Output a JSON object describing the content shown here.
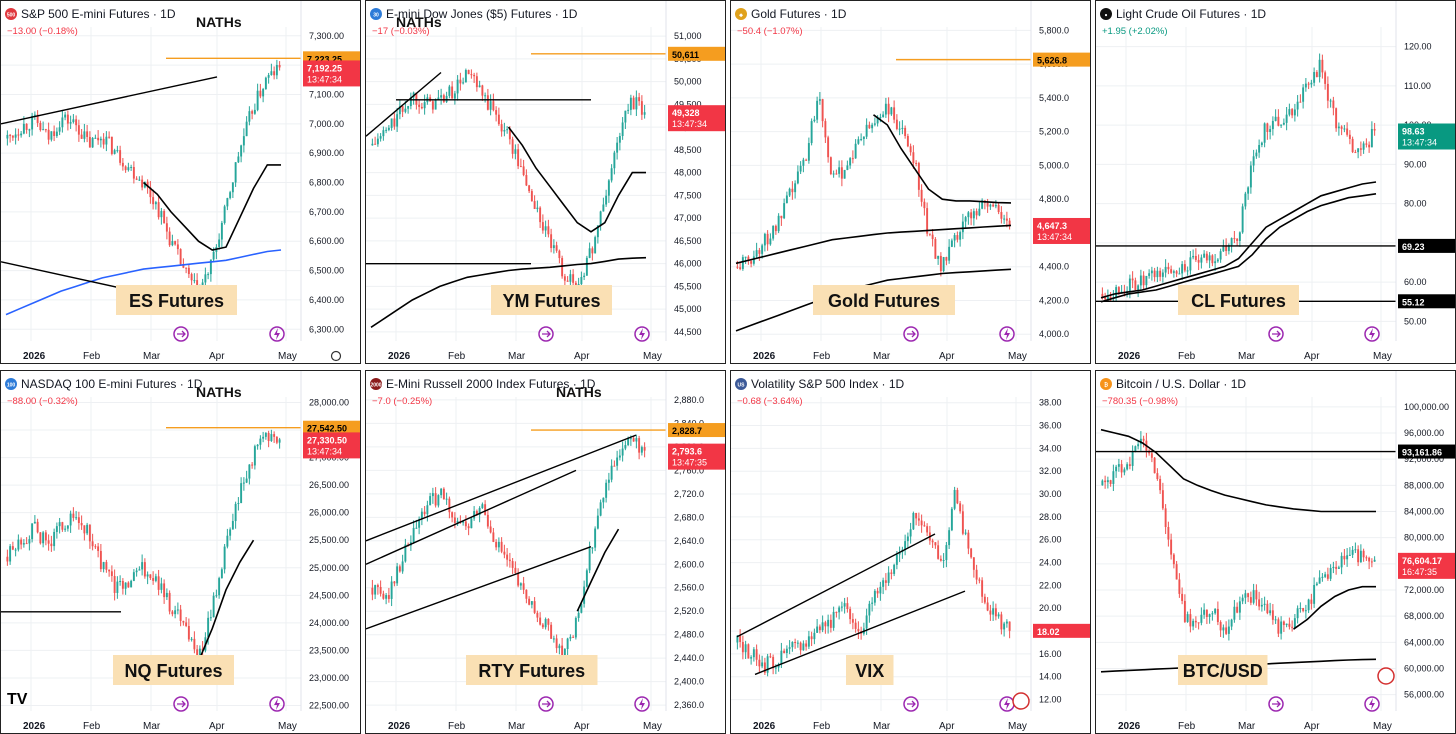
{
  "colors": {
    "up": "#26a69a",
    "down": "#ef5350",
    "ma": "#000000",
    "ma_blue": "#2962ff",
    "nath": "#f59d1f",
    "last_bg": "#f23645",
    "price_label_bg": "#f59d1f",
    "label_box": "#fae0b4",
    "grid": "#eef0f3",
    "axis_text": "#131722"
  },
  "branding": {
    "logo": "TV"
  },
  "icons": [
    "lightning-icon",
    "arrows-icon",
    "gear-icon",
    "flag-icon"
  ],
  "panels": [
    {
      "id": "es",
      "symbol_badge": "500",
      "badge_color": "#e0383e",
      "title": "S&P 500 E-mini Futures · 1D",
      "change": "−13.00 (−0.18%)",
      "change_color": "#f23645",
      "watermark": "ES Futures",
      "nath_label": "NATHs",
      "nath_price": "7,223.25",
      "last_price": "7,192.25",
      "countdown": "13:47:34",
      "y_ticks": [
        "7,300.00",
        "7,200.00",
        "7,100.00",
        "7,000.00",
        "6,900.00",
        "6,800.00",
        "6,700.00",
        "6,600.00",
        "6,500.00",
        "6,400.00",
        "6,300.00"
      ],
      "x_ticks": [
        "2026",
        "Feb",
        "Mar",
        "Apr",
        "May"
      ],
      "chart_data": {
        "type": "candlestick",
        "ylim": [
          6260,
          7330
        ],
        "nath": 7223.25,
        "last": 7192.25,
        "anchors": [
          6950,
          6990,
          7010,
          6950,
          7020,
          7000,
          6930,
          6960,
          6900,
          6850,
          6800,
          6720,
          6600,
          6500,
          6420,
          6520,
          6700,
          6900,
          7050,
          7150,
          7192
        ],
        "ma50": [
          null,
          null,
          null,
          null,
          null,
          null,
          null,
          null,
          null,
          null,
          6800,
          6760,
          6700,
          6650,
          6600,
          6570,
          6580,
          6680,
          6780,
          6860,
          6860
        ],
        "ma200": [
          6350,
          6370,
          6390,
          6410,
          6430,
          6445,
          6460,
          6475,
          6485,
          6495,
          6505,
          6510,
          6515,
          6520,
          6525,
          6530,
          6535,
          6545,
          6555,
          6565,
          6570
        ],
        "trendlines": [
          [
            [
              0,
              7000
            ],
            [
              0.72,
              7160
            ]
          ],
          [
            [
              0,
              6530
            ],
            [
              0.58,
              6400
            ]
          ]
        ],
        "hlines": []
      }
    },
    {
      "id": "ym",
      "symbol_badge": "30",
      "badge_color": "#2d7bd8",
      "title": "E-mini Dow Jones ($5) Futures · 1D",
      "change": "−17 (−0.03%)",
      "change_color": "#f23645",
      "watermark": "YM Futures",
      "nath_label": "NATHs",
      "nath_price": "50,611",
      "last_price": "49,328",
      "countdown": "13:47:34",
      "y_ticks": [
        "51,000",
        "50,500",
        "50,000",
        "49,500",
        "49,000",
        "48,500",
        "48,000",
        "47,500",
        "47,000",
        "46,500",
        "46,000",
        "45,500",
        "45,000",
        "44,500"
      ],
      "x_ticks": [
        "2026",
        "Feb",
        "Mar",
        "Apr",
        "May"
      ],
      "chart_data": {
        "type": "candlestick",
        "ylim": [
          44300,
          51200
        ],
        "nath": 50611,
        "last": 49328,
        "anchors": [
          48600,
          48900,
          49300,
          49700,
          49500,
          49600,
          49800,
          50200,
          49700,
          49300,
          48800,
          48000,
          47200,
          46500,
          45800,
          45500,
          46200,
          47300,
          48700,
          49600,
          49330
        ],
        "ma50": [
          null,
          null,
          null,
          null,
          null,
          null,
          null,
          null,
          null,
          null,
          49000,
          48600,
          48100,
          47700,
          47300,
          46900,
          46700,
          46900,
          47500,
          48000,
          48000
        ],
        "ma200": [
          44600,
          44800,
          45000,
          45200,
          45350,
          45500,
          45600,
          45700,
          45750,
          45800,
          45850,
          45880,
          45900,
          45920,
          45950,
          45980,
          46000,
          46050,
          46100,
          46120,
          46130
        ],
        "trendlines": [
          [
            [
              0,
              48800
            ],
            [
              0.25,
              50200
            ]
          ],
          [
            [
              0.1,
              49600
            ],
            [
              0.75,
              49600
            ]
          ]
        ],
        "hlines": [
          {
            "y": 46000,
            "x0": 0,
            "x1": 0.55
          }
        ]
      }
    },
    {
      "id": "gc",
      "symbol_badge": "◆",
      "badge_color": "#e0a21c",
      "title": "Gold Futures · 1D",
      "change": "−50.4 (−1.07%)",
      "change_color": "#f23645",
      "watermark": "Gold Futures",
      "nath_label": "",
      "nath_price": "5,626.8",
      "last_price": "4,647.3",
      "countdown": "13:47:34",
      "y_ticks": [
        "5,800.0",
        "5,600.0",
        "5,400.0",
        "5,200.0",
        "5,000.0",
        "4,800.0",
        "4,600.0",
        "4,400.0",
        "4,200.0",
        "4,000.0"
      ],
      "x_ticks": [
        "2026",
        "Feb",
        "Mar",
        "Apr",
        "May"
      ],
      "chart_data": {
        "type": "candlestick",
        "ylim": [
          3960,
          5820
        ],
        "nath": 5626.8,
        "last": 4647.3,
        "anchors": [
          4400,
          4450,
          4550,
          4650,
          4850,
          5050,
          5450,
          4900,
          5000,
          5150,
          5250,
          5350,
          5200,
          5050,
          4600,
          4400,
          4550,
          4700,
          4780,
          4750,
          4650
        ],
        "ma50": [
          null,
          null,
          null,
          null,
          null,
          null,
          null,
          null,
          null,
          null,
          5300,
          5240,
          5100,
          4980,
          4860,
          4800,
          4790,
          4790,
          4785,
          4780,
          4778
        ],
        "ma200": [
          4020,
          4050,
          4080,
          4110,
          4140,
          4170,
          4200,
          4230,
          4260,
          4280,
          4300,
          4320,
          4330,
          4340,
          4350,
          4360,
          4365,
          4370,
          4375,
          4380,
          4385
        ],
        "ma_extra": [
          4420,
          4440,
          4460,
          4480,
          4500,
          4520,
          4540,
          4560,
          4570,
          4580,
          4590,
          4600,
          4605,
          4610,
          4615,
          4620,
          4625,
          4630,
          4635,
          4640,
          4645
        ],
        "trendlines": [],
        "hlines": []
      }
    },
    {
      "id": "cl",
      "symbol_badge": "●",
      "badge_color": "#111111",
      "title": "Light Crude Oil Futures · 1D",
      "change": "+1.95 (+2.02%)",
      "change_color": "#089981",
      "watermark": "CL Futures",
      "nath_label": "",
      "nath_price": "",
      "last_price": "98.63",
      "countdown": "13:47:34",
      "last_bg": "#089981",
      "extra_labels": [
        {
          "text": "69.23",
          "y": 69.23
        },
        {
          "text": "55.12",
          "y": 55.12
        }
      ],
      "y_ticks": [
        "120.00",
        "110.00",
        "100.00",
        "90.00",
        "80.00",
        "70.00",
        "60.00",
        "50.00"
      ],
      "x_ticks": [
        "2026",
        "Feb",
        "Mar",
        "Apr",
        "May"
      ],
      "chart_data": {
        "type": "candlestick",
        "ylim": [
          45,
          125
        ],
        "nath": null,
        "last": 98.63,
        "anchors": [
          57,
          58,
          59,
          60,
          62,
          63,
          64,
          65,
          66,
          68,
          72,
          90,
          100,
          101,
          104,
          110,
          115,
          102,
          96,
          93,
          98.6
        ],
        "ma50": [
          56,
          57,
          57.5,
          58,
          59,
          60,
          61,
          62,
          63,
          64,
          66,
          70,
          74,
          76,
          78,
          80,
          82,
          83,
          84,
          85,
          85.5
        ],
        "ma200": [
          55,
          56,
          57,
          57.5,
          58,
          59,
          60,
          61,
          62,
          63,
          64,
          67,
          71,
          74,
          76,
          78,
          79.5,
          80.5,
          81.5,
          82,
          82.5
        ],
        "trendlines": [],
        "hlines": [
          {
            "y": 69.23,
            "x0": 0,
            "x1": 1
          },
          {
            "y": 55.12,
            "x0": 0,
            "x1": 1
          }
        ]
      }
    },
    {
      "id": "nq",
      "symbol_badge": "100",
      "badge_color": "#2d7bd8",
      "title": "NASDAQ 100 E-mini Futures · 1D",
      "change": "−88.00 (−0.32%)",
      "change_color": "#f23645",
      "watermark": "NQ Futures",
      "nath_label": "NATHs",
      "nath_price": "27,542.50",
      "last_price": "27,330.50",
      "countdown": "13:47:34",
      "y_ticks": [
        "28,000.00",
        "27,500.00",
        "27,000.00",
        "26,500.00",
        "26,000.00",
        "25,500.00",
        "25,000.00",
        "24,500.00",
        "24,000.00",
        "23,500.00",
        "23,000.00",
        "22,500.00"
      ],
      "x_ticks": [
        "2026",
        "Feb",
        "Mar",
        "Apr",
        "May"
      ],
      "chart_data": {
        "type": "candlestick",
        "ylim": [
          22400,
          28100
        ],
        "nath": 27542.5,
        "last": 27330.5,
        "anchors": [
          25200,
          25500,
          25700,
          25400,
          25800,
          25900,
          25600,
          25000,
          24600,
          24800,
          25000,
          24700,
          24300,
          24000,
          23300,
          24200,
          25300,
          26300,
          27000,
          27400,
          27330
        ],
        "ma50": [
          null,
          null,
          null,
          null,
          null,
          null,
          null,
          null,
          null,
          null,
          null,
          null,
          null,
          null,
          23300,
          23900,
          24600,
          25100,
          25500,
          null,
          null
        ],
        "ma200": [],
        "trendlines": [],
        "hlines": [
          {
            "y": 24200,
            "x0": 0,
            "x1": 0.4
          }
        ]
      }
    },
    {
      "id": "rty",
      "symbol_badge": "2000",
      "badge_color": "#8b1a1a",
      "title": "E-Mini Russell 2000 Index Futures · 1D",
      "change": "−7.0 (−0.25%)",
      "change_color": "#f23645",
      "watermark": "RTY Futures",
      "nath_label": "NATHs",
      "nath_price": "2,828.7",
      "last_price": "2,793.6",
      "countdown": "13:47:35",
      "y_ticks": [
        "2,880.0",
        "2,840.0",
        "2,800.0",
        "2,760.0",
        "2,720.0",
        "2,680.0",
        "2,640.0",
        "2,600.0",
        "2,560.0",
        "2,520.0",
        "2,480.0",
        "2,440.0",
        "2,400.0",
        "2,360.0"
      ],
      "x_ticks": [
        "2026",
        "Feb",
        "Mar",
        "Apr",
        "May"
      ],
      "chart_data": {
        "type": "candlestick",
        "ylim": [
          2350,
          2885
        ],
        "nath": 2828.7,
        "last": 2793.6,
        "anchors": [
          2560,
          2540,
          2600,
          2650,
          2700,
          2720,
          2680,
          2660,
          2700,
          2640,
          2600,
          2550,
          2520,
          2490,
          2450,
          2500,
          2620,
          2720,
          2790,
          2810,
          2793.6
        ],
        "ma50": [
          null,
          null,
          null,
          null,
          null,
          null,
          null,
          null,
          null,
          null,
          null,
          null,
          null,
          null,
          null,
          2520,
          2570,
          2620,
          2660,
          null,
          null
        ],
        "ma200": [],
        "trendlines": [
          [
            [
              0,
              2640
            ],
            [
              0.9,
              2820
            ]
          ],
          [
            [
              0,
              2600
            ],
            [
              0.7,
              2760
            ]
          ],
          [
            [
              0,
              2490
            ],
            [
              0.75,
              2630
            ]
          ]
        ],
        "hlines": []
      }
    },
    {
      "id": "vix",
      "symbol_badge": "US",
      "badge_color": "#3b5998",
      "title": "Volatility S&P 500 Index · 1D",
      "change": "−0.68 (−3.64%)",
      "change_color": "#f23645",
      "watermark": "VIX",
      "nath_label": "",
      "nath_price": "",
      "last_price": "18.02",
      "countdown": "",
      "y_ticks": [
        "38.00",
        "36.00",
        "34.00",
        "32.00",
        "30.00",
        "28.00",
        "26.00",
        "24.00",
        "22.00",
        "20.00",
        "18.00",
        "16.00",
        "14.00",
        "12.00"
      ],
      "x_ticks": [
        "2026",
        "Feb",
        "Mar",
        "Apr",
        "May"
      ],
      "chart_data": {
        "type": "candlestick",
        "ylim": [
          11,
          38.5
        ],
        "nath": null,
        "last": 18.02,
        "anchors": [
          17,
          16,
          15,
          15.5,
          16.5,
          17,
          18.5,
          19,
          20,
          18,
          21,
          23,
          25,
          28,
          27,
          24,
          30,
          25,
          21,
          19,
          18
        ],
        "ma50": [],
        "ma200": [],
        "trendlines": [
          [
            [
              0.02,
              17.5
            ],
            [
              0.68,
              26.5
            ]
          ],
          [
            [
              0.08,
              14.2
            ],
            [
              0.78,
              21.5
            ]
          ]
        ],
        "hlines": []
      }
    },
    {
      "id": "btc",
      "symbol_badge": "₿",
      "badge_color": "#f7931a",
      "title": "Bitcoin / U.S. Dollar · 1D",
      "change": "−780.35 (−0.98%)",
      "change_color": "#f23645",
      "watermark": "BTC/USD",
      "nath_label": "",
      "nath_price": "",
      "last_price": "76,604.17",
      "countdown": "16:47:35",
      "extra_labels": [
        {
          "text": "93,161.86",
          "y": 93161.86
        }
      ],
      "y_ticks": [
        "100,000.00",
        "96,000.00",
        "92,000.00",
        "88,000.00",
        "84,000.00",
        "80,000.00",
        "76,000.00",
        "72,000.00",
        "68,000.00",
        "64,000.00",
        "60,000.00",
        "56,000.00"
      ],
      "x_ticks": [
        "2026",
        "Feb",
        "Mar",
        "Apr",
        "May"
      ],
      "chart_data": {
        "type": "candlestick",
        "ylim": [
          53500,
          101500
        ],
        "nath": null,
        "last": 76604.17,
        "anchors": [
          88000,
          90000,
          92000,
          95000,
          90000,
          78000,
          68000,
          67000,
          69000,
          66000,
          70000,
          71000,
          69000,
          66000,
          67000,
          70000,
          73000,
          75000,
          77000,
          77500,
          76600
        ],
        "ma50": [
          null,
          null,
          null,
          null,
          null,
          null,
          null,
          null,
          null,
          null,
          null,
          null,
          null,
          null,
          66000,
          67500,
          69500,
          71000,
          72000,
          72500,
          72500
        ],
        "ma200": [
          96500,
          96000,
          95500,
          94500,
          93000,
          91000,
          89000,
          88000,
          87200,
          86500,
          86000,
          85500,
          85000,
          84700,
          84400,
          84200,
          84000,
          84000,
          84000,
          84000,
          84000
        ],
        "ma_extra": [
          59500,
          59600,
          59700,
          59800,
          59900,
          60000,
          60100,
          60200,
          60300,
          60400,
          60500,
          60600,
          60700,
          60800,
          60900,
          61000,
          61100,
          61200,
          61300,
          61350,
          61400
        ],
        "trendlines": [],
        "hlines": [
          {
            "y": 93161.86,
            "x0": 0,
            "x1": 1
          }
        ]
      }
    }
  ]
}
